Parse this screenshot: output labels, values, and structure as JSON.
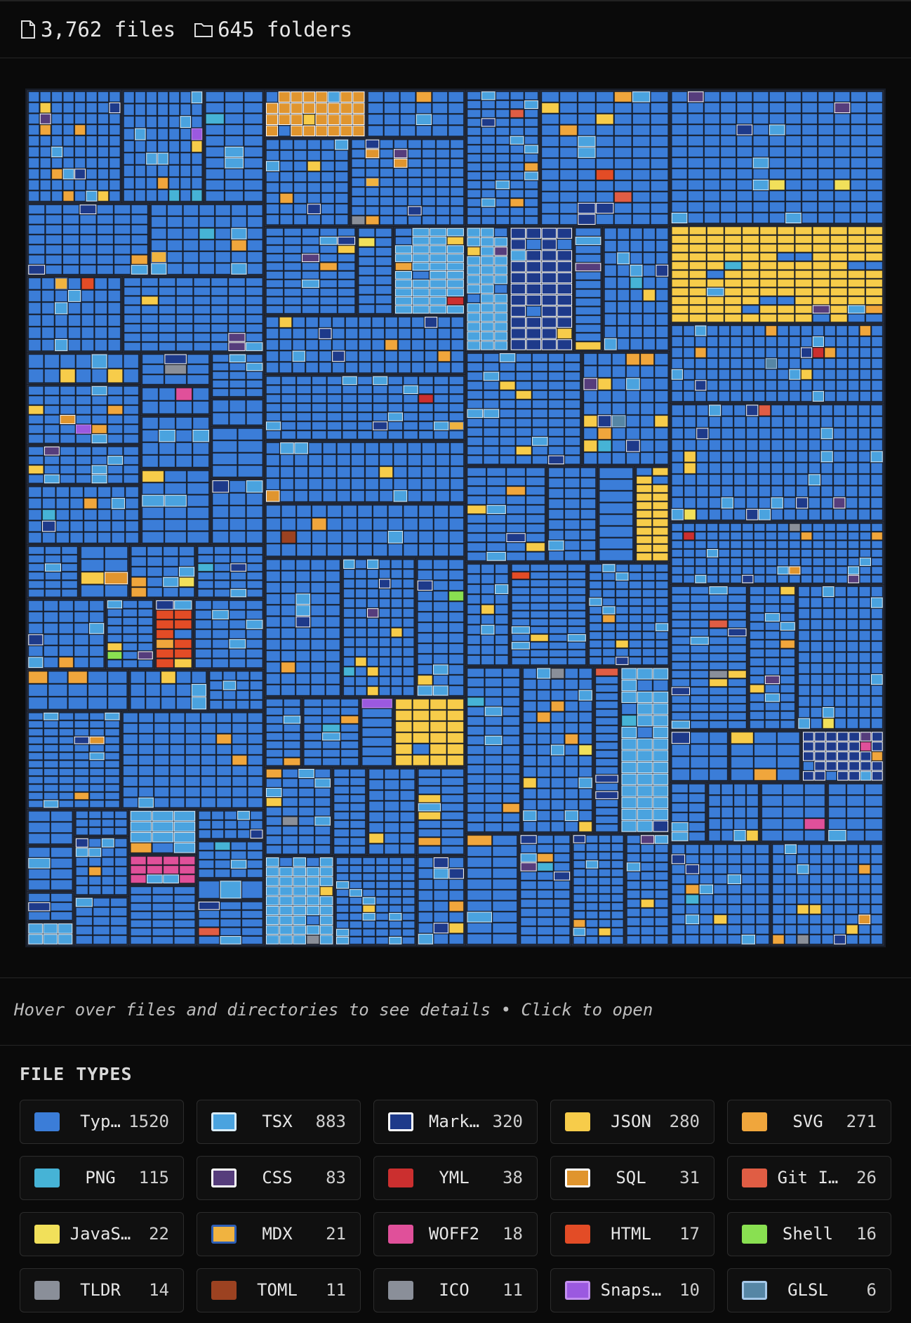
{
  "header": {
    "files": "3,762 files",
    "folders": "645 folders"
  },
  "hint": "Hover over files and directories to see details • Click to open",
  "legend": {
    "title": "FILE TYPES",
    "items": [
      {
        "name": "Typ…",
        "count": "1520",
        "color": "#3b7dd8",
        "border": "#3b7dd8"
      },
      {
        "name": "TSX",
        "count": "883",
        "color": "#4aa3df",
        "border": "#d8ecfa"
      },
      {
        "name": "Mark…",
        "count": "320",
        "color": "#1e3a8a",
        "border": "#ffffff"
      },
      {
        "name": "JSON",
        "count": "280",
        "color": "#f7cc4a",
        "border": "#f7cc4a"
      },
      {
        "name": "SVG",
        "count": "271",
        "color": "#f0a63c",
        "border": "#f0a63c"
      },
      {
        "name": "PNG",
        "count": "115",
        "color": "#46b3d6",
        "border": "#46b3d6"
      },
      {
        "name": "CSS",
        "count": "83",
        "color": "#563d7c",
        "border": "#ffffff"
      },
      {
        "name": "YML",
        "count": "38",
        "color": "#cb2f2f",
        "border": "#cb2f2f"
      },
      {
        "name": "SQL",
        "count": "31",
        "color": "#e0952e",
        "border": "#ffffff"
      },
      {
        "name": "Git I…",
        "count": "26",
        "color": "#e05d44",
        "border": "#e05d44"
      },
      {
        "name": "JavaS…",
        "count": "22",
        "color": "#f1e05a",
        "border": "#f1e05a"
      },
      {
        "name": "MDX",
        "count": "21",
        "color": "#f0b340",
        "border": "#2e5fb5"
      },
      {
        "name": "WOFF2",
        "count": "18",
        "color": "#e0509a",
        "border": "#e0509a"
      },
      {
        "name": "HTML",
        "count": "17",
        "color": "#e34c26",
        "border": "#e34c26"
      },
      {
        "name": "Shell",
        "count": "16",
        "color": "#89e051",
        "border": "#89e051"
      },
      {
        "name": "TLDR",
        "count": "14",
        "color": "#8a8f99",
        "border": "#8a8f99"
      },
      {
        "name": "TOML",
        "count": "11",
        "color": "#9c4221",
        "border": "#9c4221"
      },
      {
        "name": "ICO",
        "count": "11",
        "color": "#8a8f99",
        "border": "#8a8f99"
      },
      {
        "name": "Snaps…",
        "count": "10",
        "color": "#9b59e0",
        "border": "#c38ff0"
      },
      {
        "name": "GLSL",
        "count": "6",
        "color": "#5686a5",
        "border": "#a5c8e8"
      }
    ]
  }
}
